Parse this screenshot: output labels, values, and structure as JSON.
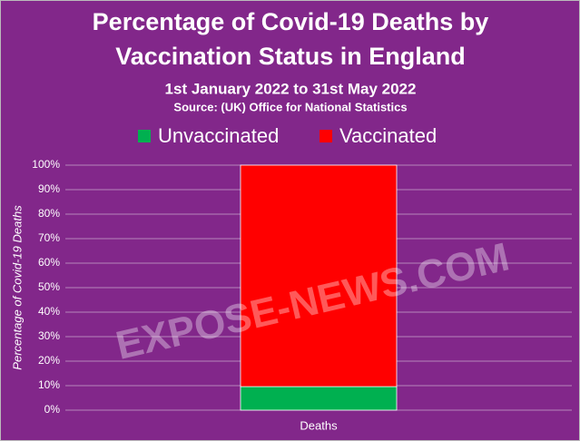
{
  "chart_data": {
    "type": "stacked_bar",
    "title": [
      "Percentage of Covid-19 Deaths by",
      "Vaccination Status in England"
    ],
    "subtitle": "1st January 2022 to 31st May 2022",
    "source": "Source:  (UK) Office for National Statistics",
    "y_label": "Percentage of Covid-19 Deaths",
    "watermark": "EXPOSE-NEWS.COM",
    "categories": [
      "Deaths"
    ],
    "series": [
      {
        "name": "Unvaccinated",
        "color": "#00b050",
        "values": [
          9.6
        ]
      },
      {
        "name": "Vaccinated",
        "color": "#ff0000",
        "values": [
          90.4
        ]
      }
    ],
    "ylim": [
      0,
      100
    ],
    "yticks": [
      {
        "value": 0,
        "label": "0%"
      },
      {
        "value": 10,
        "label": "10%"
      },
      {
        "value": 20,
        "label": "20%"
      },
      {
        "value": 30,
        "label": "30%"
      },
      {
        "value": 40,
        "label": "40%"
      },
      {
        "value": 50,
        "label": "50%"
      },
      {
        "value": 60,
        "label": "60%"
      },
      {
        "value": 70,
        "label": "70%"
      },
      {
        "value": 80,
        "label": "80%"
      },
      {
        "value": 90,
        "label": "90%"
      },
      {
        "value": 100,
        "label": "100%"
      }
    ],
    "grid": true
  }
}
